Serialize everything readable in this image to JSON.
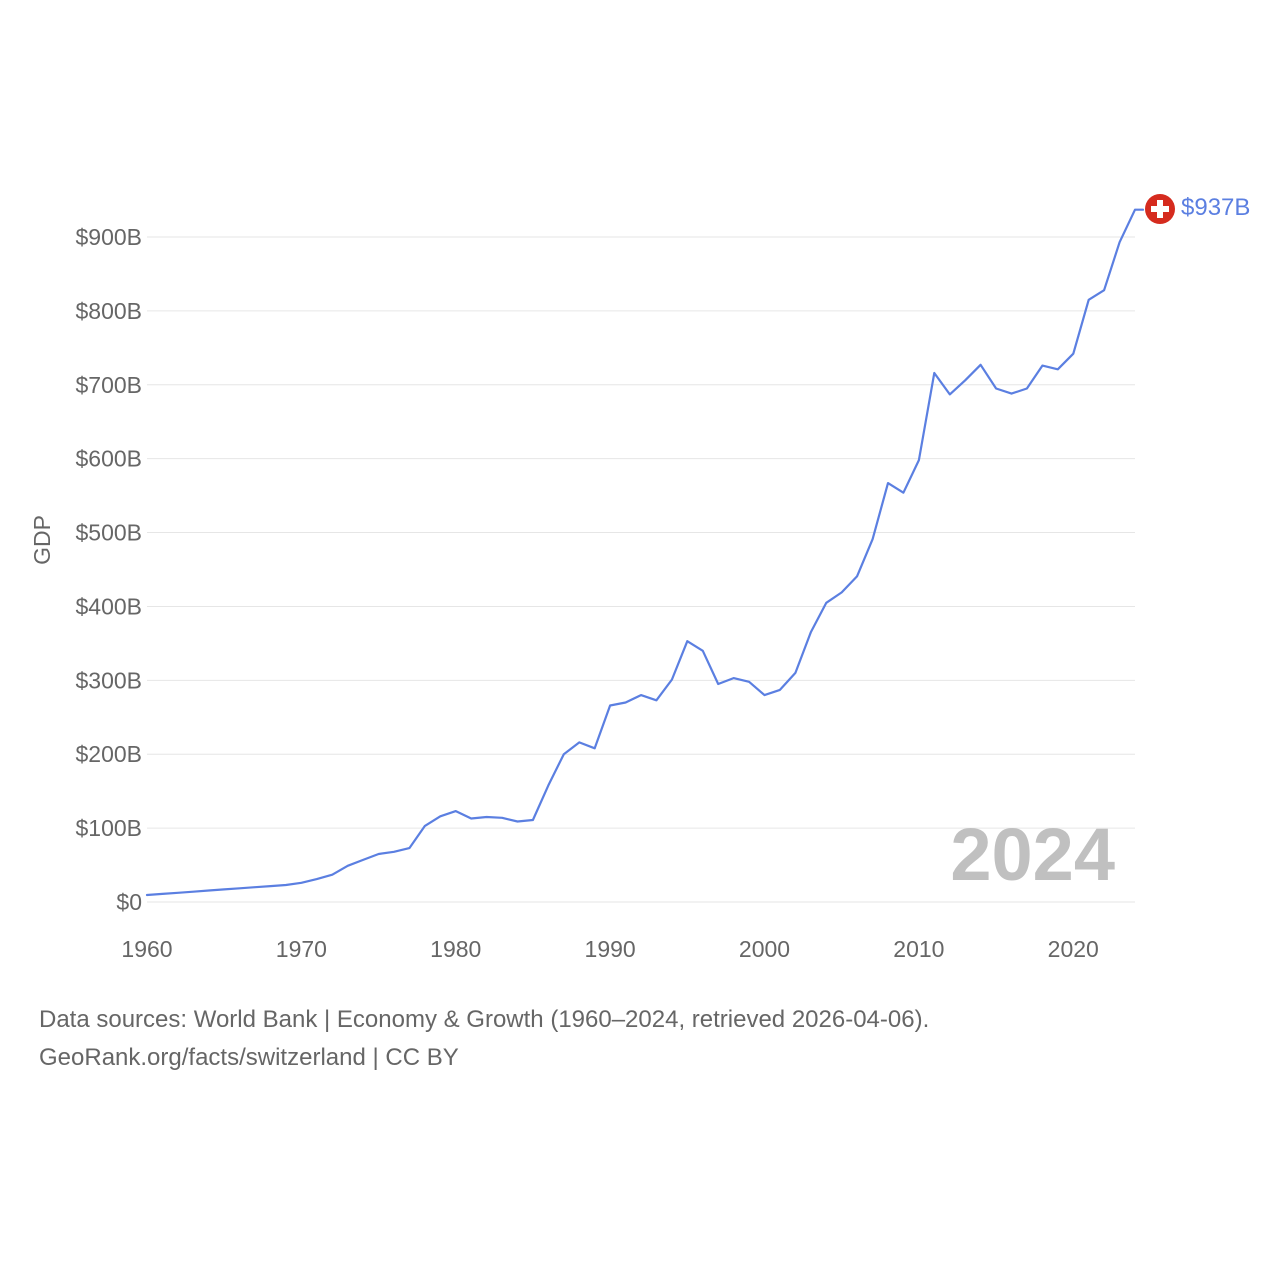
{
  "chart_data": {
    "type": "line",
    "title": "",
    "xlabel": "",
    "ylabel": "GDP",
    "xlim": [
      1960,
      2024
    ],
    "ylim": [
      0,
      900
    ],
    "y_unit": "billion USD",
    "x_ticks": [
      "1960",
      "1970",
      "1980",
      "1990",
      "2000",
      "2010",
      "2020"
    ],
    "y_ticks": [
      "$0",
      "$100B",
      "$200B",
      "$300B",
      "$400B",
      "$500B",
      "$600B",
      "$700B",
      "$800B",
      "$900B"
    ],
    "year_watermark": "2024",
    "series": [
      {
        "name": "Switzerland",
        "end_label": "$937B",
        "color": "#5b7fe1",
        "x": [
          1960,
          1961,
          1962,
          1963,
          1964,
          1965,
          1966,
          1967,
          1968,
          1969,
          1970,
          1971,
          1972,
          1973,
          1974,
          1975,
          1976,
          1977,
          1978,
          1979,
          1980,
          1981,
          1982,
          1983,
          1984,
          1985,
          1986,
          1987,
          1988,
          1989,
          1990,
          1991,
          1992,
          1993,
          1994,
          1995,
          1996,
          1997,
          1998,
          1999,
          2000,
          2001,
          2002,
          2003,
          2004,
          2005,
          2006,
          2007,
          2008,
          2009,
          2010,
          2011,
          2012,
          2013,
          2014,
          2015,
          2016,
          2017,
          2018,
          2019,
          2020,
          2021,
          2022,
          2023,
          2024
        ],
        "values": [
          9.5,
          11,
          12.5,
          14,
          15.5,
          17,
          18.5,
          20,
          21.5,
          23,
          26,
          31,
          37,
          49,
          57,
          65,
          68,
          73,
          103,
          116,
          123,
          113,
          115,
          114,
          109,
          111,
          158,
          200,
          216,
          208,
          266,
          270,
          280,
          273,
          301,
          353,
          340,
          295,
          303,
          298,
          280,
          287,
          310,
          365,
          405,
          419,
          441,
          491,
          567,
          554,
          598,
          716,
          687,
          706,
          727,
          695,
          688,
          695,
          726,
          721,
          742,
          815,
          828,
          893,
          937
        ]
      }
    ],
    "end_marker_icon": "swiss-flag-icon",
    "grid": true,
    "legend": "none"
  },
  "source": {
    "line1": "Data sources: World Bank | Economy & Growth (1960–2024, retrieved 2026-04-06).",
    "line2": "GeoRank.org/facts/switzerland | CC BY"
  }
}
